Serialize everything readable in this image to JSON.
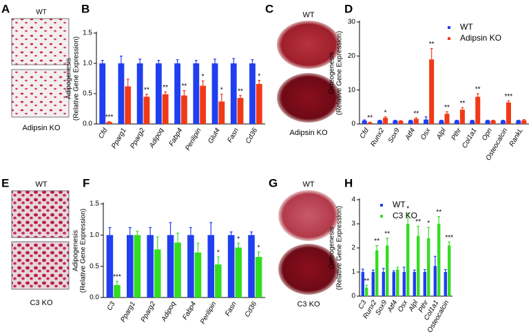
{
  "chart_data": [
    {
      "panel": "B",
      "type": "bar",
      "ylabel": [
        "Adipogenesis",
        "(Relative Gene Expression)"
      ],
      "categories": [
        "Cfd",
        "Pparg1",
        "Pparg2",
        "Adipoq",
        "Fabp4",
        "Perilipin",
        "Glut4",
        "Fasn",
        "Cd36"
      ],
      "series": [
        {
          "color": "#1f3ff0",
          "values": [
            1.0,
            1.0,
            1.0,
            1.0,
            1.0,
            1.0,
            1.0,
            1.0,
            1.0
          ],
          "errors": [
            0.05,
            0.12,
            0.07,
            0.05,
            0.06,
            0.05,
            0.07,
            0.08,
            0.06
          ]
        },
        {
          "color": "#f03a17",
          "values": [
            0.03,
            0.62,
            0.45,
            0.49,
            0.47,
            0.63,
            0.37,
            0.43,
            0.66
          ],
          "errors": [
            0.01,
            0.12,
            0.04,
            0.04,
            0.08,
            0.08,
            0.12,
            0.04,
            0.06
          ]
        }
      ],
      "annotations": [
        "***",
        null,
        "**",
        "**",
        "**",
        "*",
        "*",
        "**",
        "*"
      ],
      "ylim": [
        0,
        1.5
      ],
      "yticks": [
        {
          "value": 0,
          "label": "0.0"
        },
        {
          "value": 0.5,
          "label": "0.5"
        },
        {
          "value": 1,
          "label": "1.0"
        },
        {
          "value": 1.5,
          "label": "1.5"
        }
      ]
    },
    {
      "panel": "D",
      "type": "bar",
      "ylabel": [
        "Osteogenesis",
        "(Relative Gene Expression)"
      ],
      "categories": [
        "Cfd",
        "Runx2",
        "Sox9",
        "Atf4",
        "Osx",
        "Alpl",
        "Pthr",
        "Col1a1",
        "Opn",
        "Osteocalcin",
        "RankL"
      ],
      "series": [
        {
          "name": "WT",
          "color": "#1f3ff0",
          "values": [
            1.0,
            1.0,
            1.0,
            1.0,
            1.3,
            1.0,
            1.0,
            1.0,
            1.0,
            1.0,
            1.0
          ],
          "errors": [
            0.2,
            0.1,
            0.1,
            0.1,
            0.8,
            0.1,
            0.1,
            0.1,
            0.1,
            0.1,
            0.1
          ]
        },
        {
          "name": "Adipsin KO",
          "color": "#f03a17",
          "values": [
            0.4,
            1.8,
            0.9,
            1.5,
            19,
            3.0,
            4.2,
            8.0,
            1.0,
            6.3,
            1.1
          ],
          "errors": [
            0.1,
            0.3,
            0.1,
            0.3,
            3.2,
            0.6,
            0.6,
            0.9,
            0.1,
            0.5,
            0.2
          ]
        }
      ],
      "annotations": [
        "**",
        "*",
        null,
        "**",
        "**",
        "**",
        "**",
        "**",
        null,
        "***",
        null
      ],
      "legend": "upper right",
      "ylim": [
        0,
        30
      ],
      "yticks": [
        0,
        10,
        20,
        30
      ]
    },
    {
      "panel": "F",
      "type": "bar",
      "ylabel": [
        "Adipogenesis",
        "(Relative Gene Expression)"
      ],
      "categories": [
        "C3",
        "Pparg1",
        "Pparg2",
        "Adipoq",
        "Fabp4",
        "Perilipin",
        "Fasn",
        "Cd36"
      ],
      "series": [
        {
          "color": "#1f3ff0",
          "values": [
            1.0,
            1.0,
            1.0,
            1.0,
            1.0,
            1.0,
            1.0,
            1.0
          ],
          "errors": [
            0.12,
            0.12,
            0.12,
            0.2,
            0.12,
            0.2,
            0.05,
            0.05
          ]
        },
        {
          "color": "#33dd22",
          "values": [
            0.2,
            1.0,
            0.77,
            0.88,
            0.72,
            0.53,
            0.8,
            0.65
          ],
          "errors": [
            0.06,
            0.06,
            0.2,
            0.15,
            0.15,
            0.12,
            0.07,
            0.08
          ]
        }
      ],
      "annotations": [
        "***",
        null,
        null,
        null,
        null,
        "*",
        "*",
        "*"
      ],
      "ylim": [
        0,
        1.5
      ],
      "yticks": [
        {
          "value": 0,
          "label": "0.0"
        },
        {
          "value": 0.5,
          "label": "0.5"
        },
        {
          "value": 1,
          "label": "1.0"
        },
        {
          "value": 1.5,
          "label": "1.5"
        }
      ]
    },
    {
      "panel": "H",
      "type": "bar",
      "ylabel": [
        "Osteogenesis",
        "(Relative Gene Expression)"
      ],
      "categories": [
        "C3",
        "Runx2",
        "Sox9",
        "Atf4",
        "Osx",
        "Alpl",
        "Pthr",
        "Col1a1",
        "Osteocalcin"
      ],
      "series": [
        {
          "name": "WT",
          "color": "#1f3ff0",
          "values": [
            1.0,
            1.0,
            1.0,
            1.0,
            1.0,
            1.0,
            1.0,
            1.25,
            1.0
          ],
          "errors": [
            0.12,
            0.08,
            0.15,
            0.05,
            0.2,
            0.08,
            0.1,
            0.4,
            0.1
          ]
        },
        {
          "name": "C3 KO",
          "color": "#33dd22",
          "values": [
            0.35,
            1.9,
            2.1,
            1.1,
            3.0,
            2.5,
            2.4,
            3.0,
            2.1
          ],
          "errors": [
            0.1,
            0.2,
            0.3,
            0.1,
            0.45,
            0.4,
            0.45,
            0.3,
            0.15
          ]
        }
      ],
      "annotations": [
        "**",
        "**",
        "**",
        null,
        "*",
        "**",
        "*",
        "**",
        "***"
      ],
      "legend": "upper left",
      "ylim": [
        0,
        4
      ],
      "yticks": [
        0,
        1,
        2,
        3,
        4
      ]
    }
  ],
  "image_panels": [
    {
      "panel": "A",
      "top_label": "WT",
      "bottom_label": "Adipsin KO"
    },
    {
      "panel": "C",
      "top_label": "WT",
      "bottom_label": "Adipsin KO"
    },
    {
      "panel": "E",
      "top_label": "WT",
      "bottom_label": "C3 KO"
    },
    {
      "panel": "G",
      "top_label": "WT",
      "bottom_label": "C3 KO"
    }
  ]
}
